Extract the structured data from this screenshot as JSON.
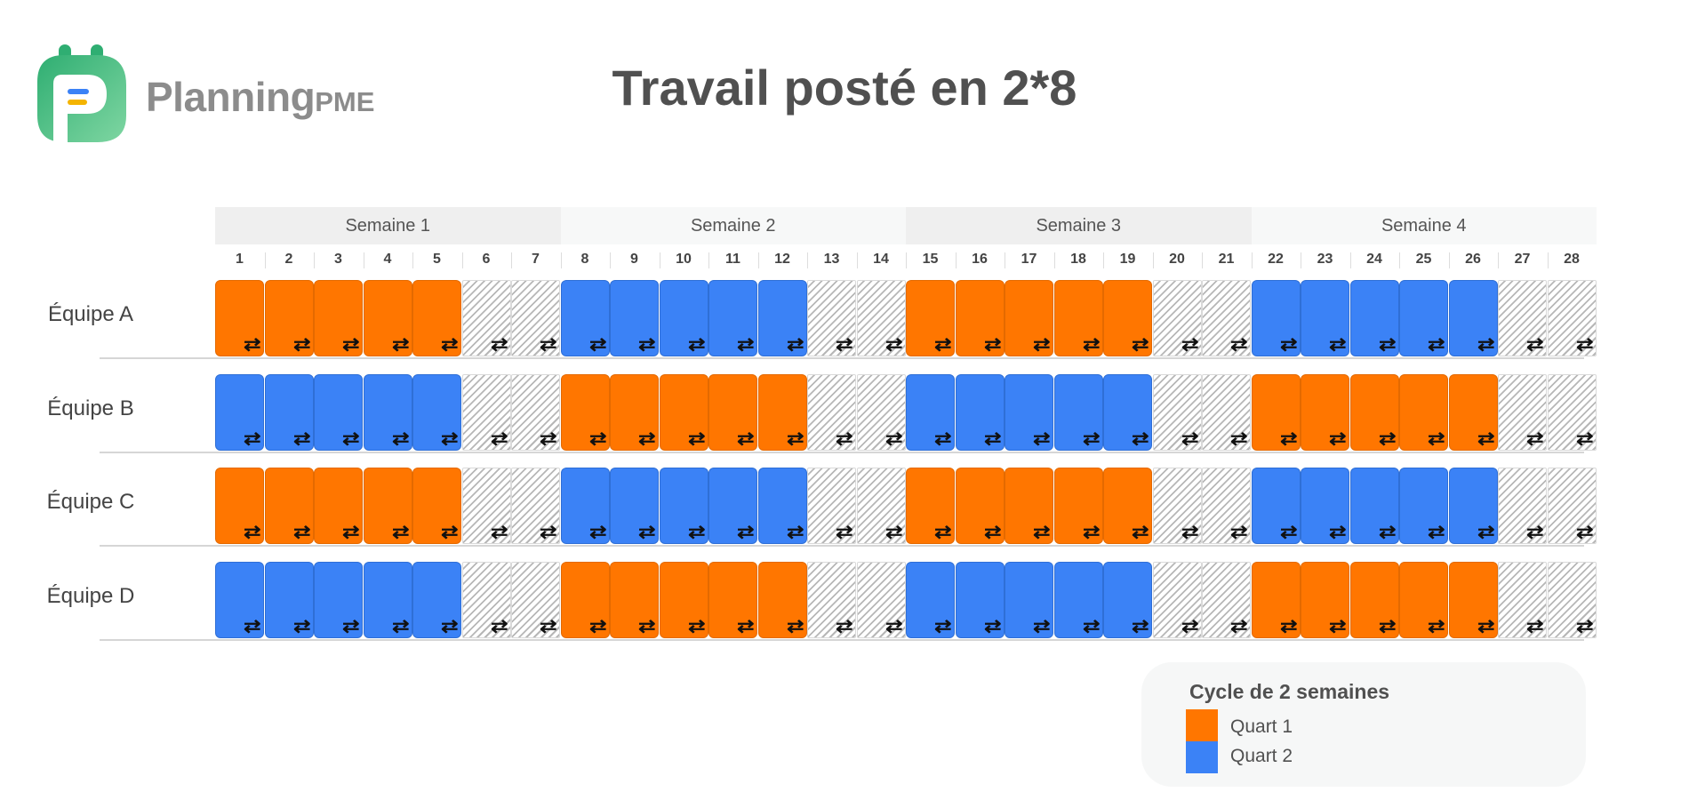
{
  "brand": {
    "name": "Planning",
    "name_suffix": "PME",
    "colors": {
      "green_dark": "#2fae72",
      "green_light": "#68cc92",
      "yellow": "#f4b400",
      "blue": "#3b82f6"
    }
  },
  "title": "Travail posté en 2*8",
  "weeks": [
    "Semaine 1",
    "Semaine 2",
    "Semaine 3",
    "Semaine 4"
  ],
  "days": [
    "1",
    "2",
    "3",
    "4",
    "5",
    "6",
    "7",
    "8",
    "9",
    "10",
    "11",
    "12",
    "13",
    "14",
    "15",
    "16",
    "17",
    "18",
    "19",
    "20",
    "21",
    "22",
    "23",
    "24",
    "25",
    "26",
    "27",
    "28"
  ],
  "shift_colors": {
    "q1": "#ff7600",
    "q2": "#3b82f6",
    "off": "hatched-grey"
  },
  "cell_icon": "repeat-icon",
  "teams": [
    {
      "label": "Équipe A",
      "schedule": [
        "q1",
        "q1",
        "q1",
        "q1",
        "q1",
        "off",
        "off",
        "q2",
        "q2",
        "q2",
        "q2",
        "q2",
        "off",
        "off",
        "q1",
        "q1",
        "q1",
        "q1",
        "q1",
        "off",
        "off",
        "q2",
        "q2",
        "q2",
        "q2",
        "q2",
        "off",
        "off"
      ]
    },
    {
      "label": "Équipe B",
      "schedule": [
        "q2",
        "q2",
        "q2",
        "q2",
        "q2",
        "off",
        "off",
        "q1",
        "q1",
        "q1",
        "q1",
        "q1",
        "off",
        "off",
        "q2",
        "q2",
        "q2",
        "q2",
        "q2",
        "off",
        "off",
        "q1",
        "q1",
        "q1",
        "q1",
        "q1",
        "off",
        "off"
      ]
    },
    {
      "label": "Équipe C",
      "schedule": [
        "q1",
        "q1",
        "q1",
        "q1",
        "q1",
        "off",
        "off",
        "q2",
        "q2",
        "q2",
        "q2",
        "q2",
        "off",
        "off",
        "q1",
        "q1",
        "q1",
        "q1",
        "q1",
        "off",
        "off",
        "q2",
        "q2",
        "q2",
        "q2",
        "q2",
        "off",
        "off"
      ]
    },
    {
      "label": "Équipe D",
      "schedule": [
        "q2",
        "q2",
        "q2",
        "q2",
        "q2",
        "off",
        "off",
        "q1",
        "q1",
        "q1",
        "q1",
        "q1",
        "off",
        "off",
        "q2",
        "q2",
        "q2",
        "q2",
        "q2",
        "off",
        "off",
        "q1",
        "q1",
        "q1",
        "q1",
        "q1",
        "off",
        "off"
      ]
    }
  ],
  "legend": {
    "title": "Cycle de 2 semaines",
    "items": [
      {
        "label": "Quart 1",
        "color": "#ff7600"
      },
      {
        "label": "Quart 2",
        "color": "#3b82f6"
      }
    ]
  }
}
